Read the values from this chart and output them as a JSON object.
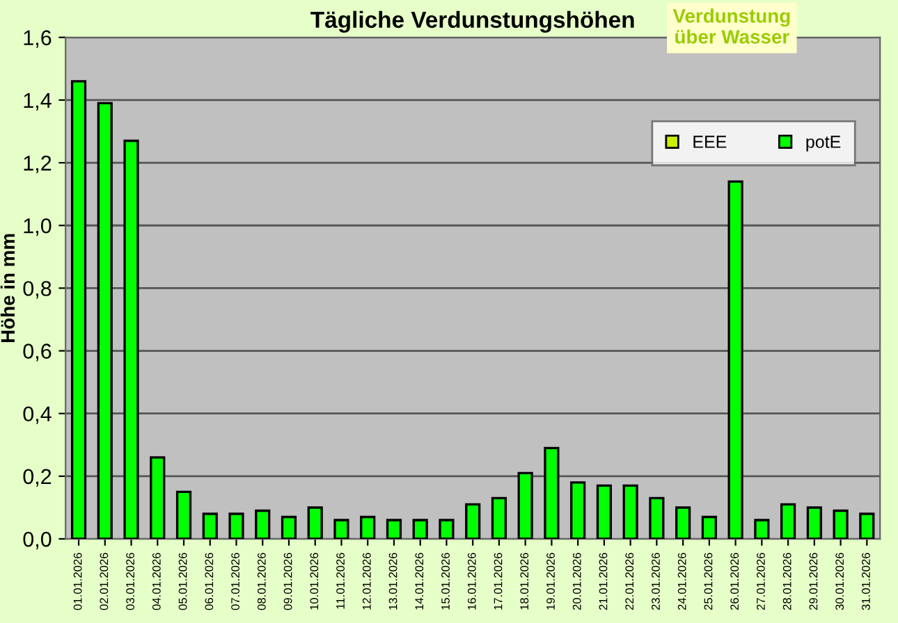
{
  "chart_data": {
    "type": "bar",
    "title": "Tägliche Verdunstungshöhen",
    "ylabel": "Höhe in mm",
    "annotations": [
      "Verdunstung\nüber Wasser"
    ],
    "categories": [
      "01.01.2026",
      "02.01.2026",
      "03.01.2026",
      "04.01.2026",
      "05.01.2026",
      "06.01.2026",
      "07.01.2026",
      "08.01.2026",
      "09.01.2026",
      "10.01.2026",
      "11.01.2026",
      "12.01.2026",
      "13.01.2026",
      "14.01.2026",
      "15.01.2026",
      "16.01.2026",
      "17.01.2026",
      "18.01.2026",
      "19.01.2026",
      "20.01.2026",
      "21.01.2026",
      "22.01.2026",
      "23.01.2026",
      "24.01.2026",
      "25.01.2026",
      "26.01.2026",
      "27.01.2026",
      "28.01.2026",
      "29.01.2026",
      "30.01.2026",
      "31.01.2026"
    ],
    "series": [
      {
        "name": "EEE",
        "color": "#ccee00",
        "values": [
          null,
          null,
          null,
          null,
          null,
          null,
          null,
          null,
          null,
          null,
          null,
          null,
          null,
          null,
          null,
          null,
          null,
          null,
          null,
          null,
          null,
          null,
          null,
          null,
          null,
          null,
          null,
          null,
          null,
          null,
          null
        ]
      },
      {
        "name": "potE",
        "color": "#00ff00",
        "values": [
          1.46,
          1.39,
          1.27,
          0.26,
          0.15,
          0.08,
          0.08,
          0.09,
          0.07,
          0.1,
          0.06,
          0.07,
          0.06,
          0.06,
          0.06,
          0.11,
          0.13,
          0.21,
          0.29,
          0.18,
          0.17,
          0.17,
          0.13,
          0.1,
          0.07,
          1.14,
          0.06,
          0.11,
          0.1,
          0.09,
          0.08
        ]
      }
    ],
    "ylim": [
      0,
      1.6
    ],
    "yticks": [
      {
        "value": 0,
        "label": "0,0"
      },
      {
        "value": 0.2,
        "label": "0,2"
      },
      {
        "value": 0.4,
        "label": "0,4"
      },
      {
        "value": 0.6,
        "label": "0,6"
      },
      {
        "value": 0.8,
        "label": "0,8"
      },
      {
        "value": 1.0,
        "label": "1,0"
      },
      {
        "value": 1.2,
        "label": "1,2"
      },
      {
        "value": 1.4,
        "label": "1,4"
      },
      {
        "value": 1.6,
        "label": "1,6"
      }
    ],
    "grid": "y",
    "legend": "top right"
  }
}
